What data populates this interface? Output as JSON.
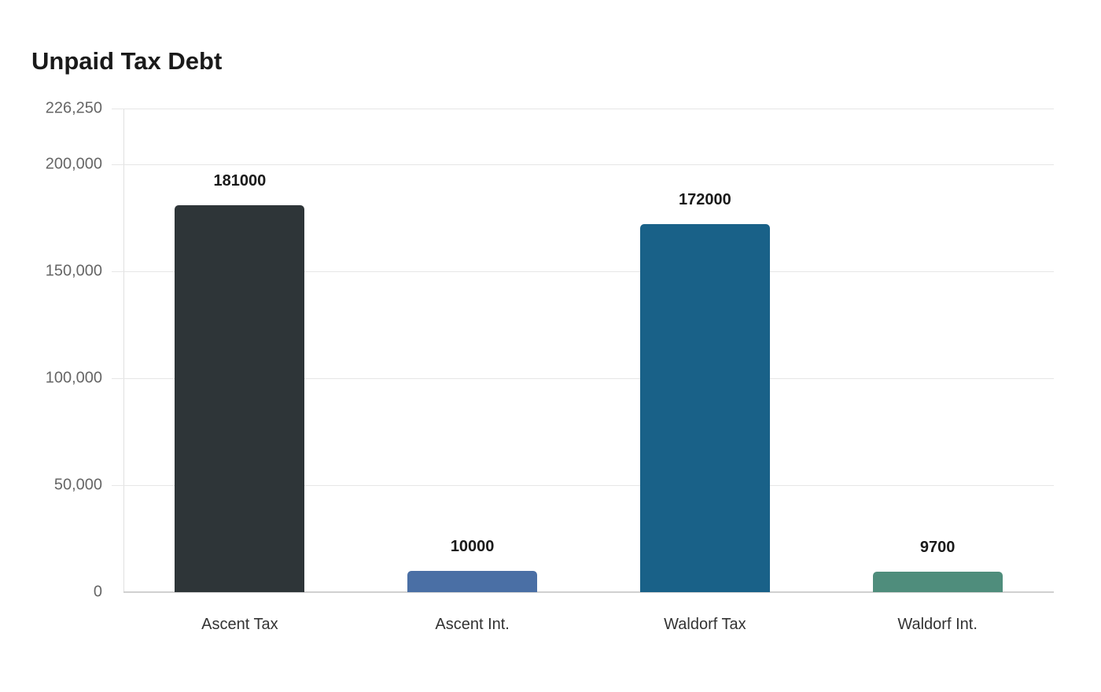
{
  "chart_data": {
    "type": "bar",
    "title": "Unpaid Tax Debt",
    "xlabel": "",
    "ylabel": "",
    "categories": [
      "Ascent Tax",
      "Ascent Int.",
      "Waldorf Tax",
      "Waldorf Int."
    ],
    "values": [
      181000,
      10000,
      172000,
      9700
    ],
    "value_labels": [
      "181000",
      "10000",
      "172000",
      "9700"
    ],
    "colors": [
      "#2e3538",
      "#4a6fa5",
      "#196188",
      "#4f8d7c"
    ],
    "ylim": [
      0,
      226250
    ],
    "yticks": [
      0,
      50000,
      100000,
      150000,
      200000,
      226250
    ],
    "ytick_labels": [
      "0",
      "50,000",
      "100,000",
      "150,000",
      "200,000",
      "226,250"
    ],
    "grid": true,
    "legend": null
  }
}
